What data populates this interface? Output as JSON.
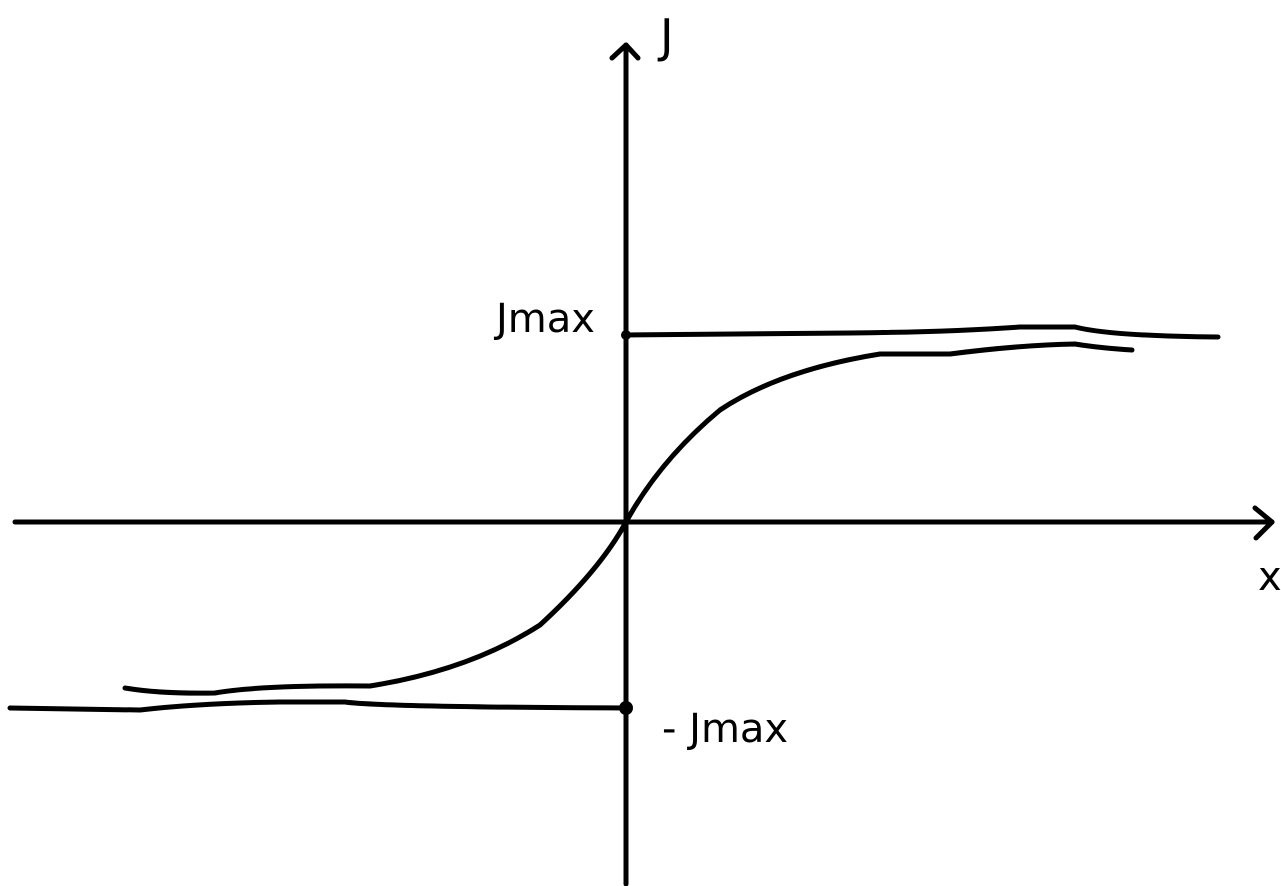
{
  "labels": {
    "y_axis": "J",
    "x_axis": "x",
    "upper": "Jmax",
    "lower": "- Jmax"
  }
}
